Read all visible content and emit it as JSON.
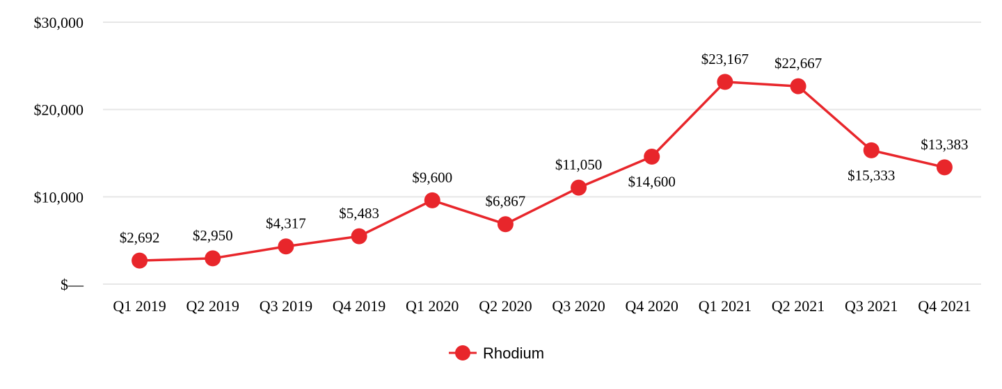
{
  "chart_data": {
    "type": "line",
    "categories": [
      "Q1 2019",
      "Q2 2019",
      "Q3 2019",
      "Q4 2019",
      "Q1 2020",
      "Q2 2020",
      "Q3 2020",
      "Q4 2020",
      "Q1 2021",
      "Q2 2021",
      "Q3 2021",
      "Q4 2021"
    ],
    "series": [
      {
        "name": "Rhodium",
        "color": "#e8262b",
        "values": [
          2692,
          2950,
          4317,
          5483,
          9600,
          6867,
          11050,
          14600,
          23167,
          22667,
          15333,
          13383
        ],
        "data_labels": [
          "$2,692",
          "$2,950",
          "$4,317",
          "$5,483",
          "$9,600",
          "$6,867",
          "$11,050",
          "$14,600",
          "$23,167",
          "$22,667",
          "$15,333",
          "$13,383"
        ]
      }
    ],
    "y_ticks": [
      0,
      10000,
      20000,
      30000
    ],
    "y_tick_labels": [
      "$—",
      "$10,000",
      "$20,000",
      "$30,000"
    ],
    "ylim": [
      0,
      30000
    ],
    "title": "",
    "xlabel": "",
    "ylabel": "",
    "grid": true,
    "legend_position": "bottom-center"
  }
}
